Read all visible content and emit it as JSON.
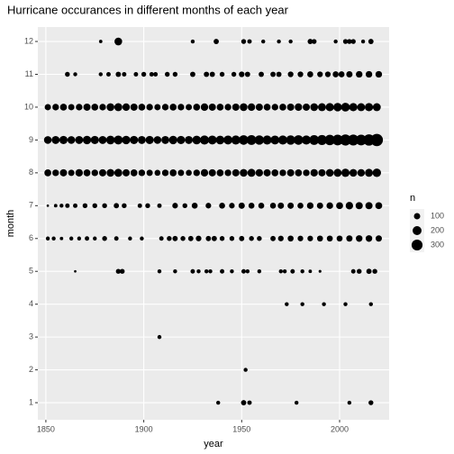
{
  "chart_data": {
    "type": "scatter",
    "title": "Hurricane occurances in different months of each year",
    "x_label": "year",
    "y_label": "month",
    "xlim": [
      1845.9,
      2025.3
    ],
    "ylim": [
      0.48,
      12.44
    ],
    "xticks": [
      1850,
      1900,
      1950,
      2000
    ],
    "yticks": [
      1,
      2,
      3,
      4,
      5,
      6,
      7,
      8,
      9,
      10,
      11,
      12
    ],
    "grid": true,
    "color": "#000000",
    "legend_title": "n",
    "size_legend": [
      100,
      200,
      300
    ],
    "series": [
      {
        "x": [
          1938,
          1951,
          1954,
          1978,
          2005,
          2016
        ],
        "values": [
          1,
          1,
          1,
          1,
          1,
          1
        ],
        "sizes": [
          40,
          70,
          50,
          40,
          40,
          60
        ]
      },
      {
        "x": [
          1952
        ],
        "values": [
          2
        ],
        "sizes": [
          40
        ]
      },
      {
        "x": [
          1908
        ],
        "values": [
          3
        ],
        "sizes": [
          40
        ]
      },
      {
        "x": [
          1973,
          1981,
          1992,
          2003,
          2016
        ],
        "values": [
          4,
          4,
          4,
          4,
          4
        ],
        "sizes": [
          40,
          40,
          40,
          40,
          40
        ]
      },
      {
        "x": [
          1865,
          1887,
          1889,
          1908,
          1916,
          1925,
          1928,
          1932,
          1934,
          1940,
          1945,
          1951,
          1953,
          1959,
          1970,
          1972,
          1976,
          1981,
          1985,
          1990,
          2007,
          2010,
          2015,
          2018
        ],
        "values": [
          5,
          5,
          5,
          5,
          5,
          5,
          5,
          5,
          5,
          5,
          5,
          5,
          5,
          5,
          5,
          5,
          5,
          5,
          5,
          5,
          5,
          5,
          5,
          5
        ],
        "sizes": [
          15,
          60,
          60,
          40,
          40,
          50,
          40,
          40,
          40,
          50,
          40,
          50,
          40,
          40,
          40,
          40,
          50,
          40,
          30,
          20,
          50,
          60,
          70,
          60
        ]
      },
      {
        "x": [
          1851,
          1854,
          1858,
          1863,
          1867,
          1871,
          1875,
          1880,
          1886,
          1893,
          1899,
          1909,
          1913,
          1916,
          1920,
          1924,
          1928,
          1933,
          1936,
          1940,
          1945,
          1950,
          1955,
          1959,
          1966,
          1970,
          1975,
          1980,
          1985,
          1990,
          1995,
          2000,
          2005,
          2010,
          2015,
          2020
        ],
        "values": [
          6,
          6,
          6,
          6,
          6,
          6,
          6,
          6,
          6,
          6,
          6,
          6,
          6,
          6,
          6,
          6,
          6,
          6,
          6,
          6,
          6,
          6,
          6,
          6,
          6,
          6,
          6,
          6,
          6,
          6,
          6,
          6,
          6,
          6,
          6,
          6
        ],
        "sizes": [
          40,
          40,
          30,
          40,
          40,
          50,
          40,
          60,
          50,
          40,
          40,
          50,
          60,
          70,
          60,
          70,
          80,
          70,
          70,
          60,
          60,
          70,
          60,
          60,
          70,
          80,
          90,
          80,
          80,
          90,
          90,
          90,
          100,
          110,
          110,
          100
        ]
      },
      {
        "x": [
          1851,
          1855,
          1858,
          1861,
          1865,
          1870,
          1875,
          1880,
          1886,
          1890,
          1898,
          1902,
          1908,
          1916,
          1921,
          1926,
          1933,
          1940,
          1945,
          1950,
          1955,
          1960,
          1966,
          1970,
          1975,
          1980,
          1985,
          1990,
          1995,
          2000,
          2005,
          2010,
          2015,
          2020
        ],
        "values": [
          7,
          7,
          7,
          7,
          7,
          7,
          7,
          7,
          7,
          7,
          7,
          7,
          7,
          7,
          7,
          7,
          7,
          7,
          7,
          7,
          7,
          7,
          7,
          7,
          7,
          7,
          7,
          7,
          7,
          7,
          7,
          7,
          7,
          7
        ],
        "sizes": [
          15,
          30,
          40,
          50,
          50,
          60,
          60,
          60,
          70,
          60,
          50,
          60,
          50,
          80,
          60,
          90,
          80,
          90,
          80,
          100,
          90,
          90,
          90,
          100,
          100,
          90,
          110,
          100,
          110,
          120,
          140,
          130,
          130,
          120
        ]
      },
      {
        "x": [
          1851,
          1855,
          1859,
          1863,
          1867,
          1871,
          1875,
          1879,
          1883,
          1887,
          1891,
          1895,
          1899,
          1903,
          1907,
          1911,
          1915,
          1919,
          1923,
          1927,
          1931,
          1935,
          1939,
          1943,
          1947,
          1951,
          1955,
          1959,
          1963,
          1967,
          1971,
          1975,
          1979,
          1983,
          1987,
          1991,
          1995,
          1999,
          2003,
          2007,
          2011,
          2015,
          2019
        ],
        "values": [
          8,
          8,
          8,
          8,
          8,
          8,
          8,
          8,
          8,
          8,
          8,
          8,
          8,
          8,
          8,
          8,
          8,
          8,
          8,
          8,
          8,
          8,
          8,
          8,
          8,
          8,
          8,
          8,
          8,
          8,
          8,
          8,
          8,
          8,
          8,
          8,
          8,
          8,
          8,
          8,
          8,
          8,
          8
        ],
        "sizes": [
          120,
          110,
          130,
          100,
          140,
          120,
          110,
          130,
          150,
          160,
          130,
          120,
          110,
          100,
          90,
          110,
          120,
          100,
          90,
          110,
          140,
          130,
          120,
          110,
          130,
          150,
          160,
          140,
          130,
          120,
          110,
          130,
          120,
          110,
          140,
          130,
          150,
          160,
          170,
          150,
          140,
          160,
          180
        ]
      },
      {
        "x": [
          1851,
          1855,
          1859,
          1863,
          1867,
          1871,
          1875,
          1879,
          1883,
          1887,
          1891,
          1895,
          1899,
          1903,
          1907,
          1911,
          1915,
          1919,
          1923,
          1927,
          1931,
          1935,
          1939,
          1943,
          1947,
          1951,
          1955,
          1959,
          1963,
          1967,
          1971,
          1975,
          1979,
          1983,
          1987,
          1991,
          1995,
          1999,
          2003,
          2007,
          2011,
          2015,
          2019
        ],
        "values": [
          9,
          9,
          9,
          9,
          9,
          9,
          9,
          9,
          9,
          9,
          9,
          9,
          9,
          9,
          9,
          9,
          9,
          9,
          9,
          9,
          9,
          9,
          9,
          9,
          9,
          9,
          9,
          9,
          9,
          9,
          9,
          9,
          9,
          9,
          9,
          9,
          9,
          9,
          9,
          9,
          9,
          9,
          9
        ],
        "sizes": [
          150,
          160,
          170,
          150,
          160,
          180,
          170,
          160,
          190,
          200,
          180,
          170,
          160,
          170,
          150,
          160,
          180,
          170,
          160,
          190,
          210,
          200,
          190,
          200,
          210,
          230,
          240,
          220,
          210,
          200,
          210,
          220,
          230,
          210,
          240,
          250,
          270,
          290,
          310,
          300,
          290,
          320,
          380
        ]
      },
      {
        "x": [
          1851,
          1855,
          1859,
          1863,
          1867,
          1871,
          1875,
          1879,
          1883,
          1887,
          1891,
          1895,
          1899,
          1903,
          1907,
          1911,
          1915,
          1919,
          1923,
          1927,
          1931,
          1935,
          1939,
          1943,
          1947,
          1951,
          1955,
          1959,
          1963,
          1967,
          1971,
          1975,
          1979,
          1983,
          1987,
          1991,
          1995,
          1999,
          2003,
          2007,
          2011,
          2015,
          2019
        ],
        "values": [
          10,
          10,
          10,
          10,
          10,
          10,
          10,
          10,
          10,
          10,
          10,
          10,
          10,
          10,
          10,
          10,
          10,
          10,
          10,
          10,
          10,
          10,
          10,
          10,
          10,
          10,
          10,
          10,
          10,
          10,
          10,
          10,
          10,
          10,
          10,
          10,
          10,
          10,
          10,
          10,
          10,
          10,
          10
        ],
        "sizes": [
          100,
          110,
          120,
          100,
          110,
          130,
          120,
          110,
          150,
          160,
          140,
          130,
          120,
          110,
          100,
          110,
          120,
          110,
          100,
          120,
          140,
          130,
          120,
          110,
          130,
          150,
          140,
          130,
          120,
          110,
          120,
          130,
          140,
          130,
          150,
          160,
          170,
          180,
          190,
          170,
          160,
          170,
          160
        ]
      },
      {
        "x": [
          1861,
          1865,
          1878,
          1882,
          1887,
          1890,
          1896,
          1900,
          1904,
          1906,
          1912,
          1916,
          1925,
          1932,
          1935,
          1940,
          1946,
          1950,
          1953,
          1960,
          1966,
          1969,
          1975,
          1980,
          1985,
          1990,
          1994,
          1998,
          2001,
          2005,
          2010,
          2015,
          2020
        ],
        "values": [
          11,
          11,
          11,
          11,
          11,
          11,
          11,
          11,
          11,
          11,
          11,
          11,
          11,
          11,
          11,
          11,
          11,
          11,
          11,
          11,
          11,
          11,
          11,
          11,
          11,
          11,
          11,
          11,
          11,
          11,
          11,
          11,
          11
        ],
        "sizes": [
          60,
          40,
          40,
          50,
          70,
          50,
          50,
          60,
          50,
          50,
          60,
          60,
          70,
          70,
          70,
          60,
          60,
          80,
          70,
          70,
          70,
          70,
          80,
          80,
          90,
          80,
          80,
          90,
          90,
          100,
          110,
          110,
          110
        ]
      },
      {
        "x": [
          1878,
          1887,
          1925,
          1937,
          1951,
          1954,
          1961,
          1969,
          1975,
          1985,
          1987,
          1998,
          2003,
          2005,
          2007,
          2012,
          2016
        ],
        "values": [
          12,
          12,
          12,
          12,
          12,
          12,
          12,
          12,
          12,
          12,
          12,
          12,
          12,
          12,
          12,
          12,
          12
        ],
        "sizes": [
          30,
          150,
          40,
          70,
          60,
          50,
          40,
          40,
          40,
          70,
          60,
          40,
          60,
          60,
          60,
          40,
          70
        ]
      }
    ]
  }
}
